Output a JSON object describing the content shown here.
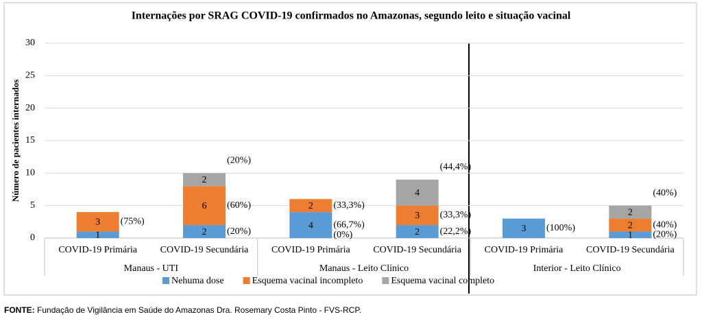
{
  "chart_data": {
    "type": "stacked_bar",
    "title": "Internações por SRAG COVID-19 confirmados no Amazonas, segundo leito e situação vacinal",
    "y_label": "Número de pacientes internados",
    "categories": [
      "COVID-19 Primária",
      "COVID-19 Secundária",
      "COVID-19 Primária",
      "COVID-19 Secundária",
      "COVID-19 Primária",
      "COVID-19 Secundária"
    ],
    "groups": [
      "Manaus - UTI",
      "Manaus - Leito Clínico",
      "Interior - Leito Clínico"
    ],
    "series": [
      {
        "name": "Nehuma dose",
        "color": "#5b9bd5",
        "values": [
          1,
          2,
          4,
          2,
          3,
          1
        ],
        "percent_labels": [
          null,
          "(20%)",
          "(66,7%)",
          "(22,2%)",
          "(100%)",
          "(20%)"
        ]
      },
      {
        "name": "Esquema vacinal incompleto",
        "color": "#ed7d31",
        "values": [
          3,
          6,
          2,
          3,
          null,
          2
        ],
        "percent_labels": [
          "(75%)",
          "(60%)",
          "(33,3%)",
          "(33,3%)",
          null,
          "(40%)"
        ]
      },
      {
        "name": "Esquema vacinal completo",
        "color": "#a5a5a5",
        "values": [
          null,
          2,
          null,
          4,
          null,
          2
        ],
        "percent_labels": [
          null,
          "(20%)",
          "(0%)",
          "(44,4%)",
          null,
          "(40%)"
        ]
      }
    ],
    "ylim": [
      0,
      30
    ],
    "yticks": [
      0,
      5,
      10,
      15,
      20,
      25,
      30
    ],
    "grid": true
  },
  "footer": {
    "label": "FONTE:",
    "text": "Fundação de Vigilância em Saúde do Amazonas Dra. Rosemary Costa Pinto - FVS-RCP."
  }
}
